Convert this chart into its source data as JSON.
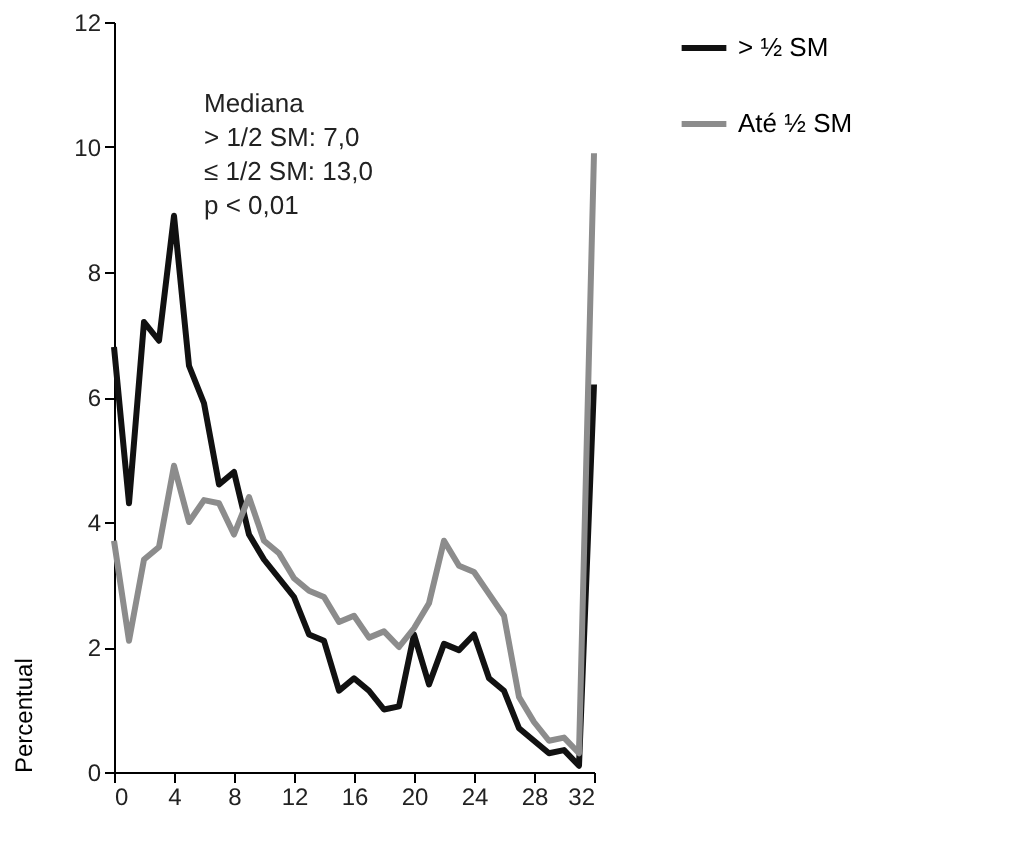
{
  "chart_data": {
    "type": "line",
    "ylabel": "Percentual",
    "x": [
      0,
      1,
      2,
      3,
      4,
      5,
      6,
      7,
      8,
      9,
      10,
      11,
      12,
      13,
      14,
      15,
      16,
      17,
      18,
      19,
      20,
      21,
      22,
      23,
      24,
      25,
      26,
      27,
      28,
      29,
      30,
      31,
      32
    ],
    "series": [
      {
        "name": "> ½ SM",
        "color": "#111111",
        "values": [
          6.8,
          4.3,
          7.2,
          6.9,
          8.9,
          6.5,
          5.9,
          4.6,
          4.8,
          3.8,
          3.4,
          3.1,
          2.8,
          2.2,
          2.1,
          1.3,
          1.5,
          1.3,
          1.0,
          1.05,
          2.2,
          1.4,
          2.05,
          1.95,
          2.2,
          1.5,
          1.3,
          0.7,
          0.5,
          0.3,
          0.35,
          0.1,
          6.2
        ]
      },
      {
        "name": "Até ½ SM",
        "color": "#8c8c8c",
        "values": [
          3.7,
          2.1,
          3.4,
          3.6,
          4.9,
          4.0,
          4.35,
          4.3,
          3.8,
          4.4,
          3.7,
          3.5,
          3.1,
          2.9,
          2.8,
          2.4,
          2.5,
          2.15,
          2.25,
          2.0,
          2.3,
          2.7,
          3.7,
          3.3,
          3.2,
          2.85,
          2.5,
          1.2,
          0.8,
          0.5,
          0.55,
          0.3,
          9.9
        ]
      }
    ],
    "xlim": [
      0,
      32
    ],
    "xticks": [
      0,
      4,
      8,
      12,
      16,
      20,
      24,
      28,
      32
    ],
    "ylim": [
      0,
      12
    ],
    "yticks": [
      0,
      2,
      4,
      6,
      8,
      10,
      12
    ],
    "grid": false,
    "legend": "top right",
    "marker": "none",
    "line_style": "solid",
    "annotations": [
      "Mediana",
      "> 1/2 SM: 7,0",
      "≤ 1/2 SM: 13,0",
      "p < 0,01"
    ]
  }
}
